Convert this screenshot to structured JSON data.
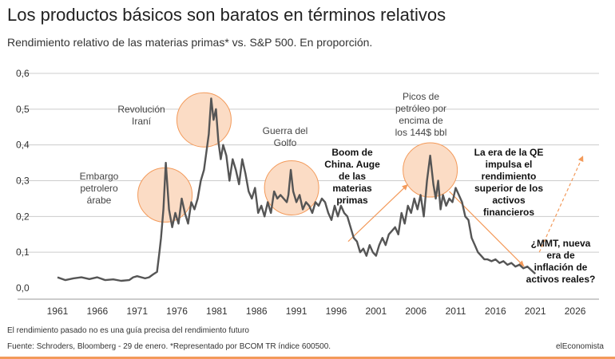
{
  "header": {
    "title": "Los productos básicos son baratos en términos relativos",
    "subtitle": "Rendimiento relativo de las materias primas* vs. S&P 500. En proporción."
  },
  "footer": {
    "note": "El rendimiento pasado no es una guía precisa del rendimiento futuro",
    "source": "Fuente: Schroders, Bloomberg - 29 de enero. *Representado por BCOM TR índice 600500.",
    "brand": "elEconomista"
  },
  "colors": {
    "line": "#555555",
    "circle_fill": "#fbdcc5",
    "circle_stroke": "#f39a5a",
    "arrow": "#f39a5a",
    "grid": "#cccccc"
  },
  "annotations": {
    "embargo": [
      "Embargo",
      "petrolero",
      "árabe"
    ],
    "revolucion": [
      "Revolución",
      "Iraní"
    ],
    "golfo": [
      "Guerra del",
      "Golfo"
    ],
    "picos": [
      "Picos de",
      "petróleo por",
      "encima de",
      "los 144$ bbl"
    ],
    "china": [
      "Boom de",
      "China. Auge",
      "de las",
      "materias",
      "primas"
    ],
    "qe": [
      "La era de la QE",
      "impulsa el",
      "rendimiento",
      "superior de los",
      "activos",
      "financieros"
    ],
    "mmt": [
      "¿MMT, nueva",
      "era de",
      "inflación de",
      "activos reales?"
    ]
  },
  "chart_data": {
    "type": "line",
    "title": "Los productos básicos son baratos en términos relativos",
    "subtitle": "Rendimiento relativo de las materias primas* vs. S&P 500. En proporción.",
    "xlim": [
      1960,
      2029
    ],
    "ylim": [
      0,
      0.6
    ],
    "x_ticks": [
      1961,
      1966,
      1971,
      1976,
      1981,
      1986,
      1991,
      1996,
      2001,
      2006,
      2011,
      2016,
      2021,
      2026
    ],
    "y_ticks": [
      0.0,
      0.1,
      0.2,
      0.3,
      0.4,
      0.5,
      0.6
    ],
    "y_tick_labels": [
      "0,0",
      "0,1",
      "0,2",
      "0,3",
      "0,4",
      "0,5",
      "0,6"
    ],
    "grid": "horizontal",
    "series": [
      {
        "x": [
          1961.0,
          1962.0,
          1963.0,
          1964.0,
          1965.0,
          1966.0,
          1967.0,
          1968.0,
          1969.0,
          1970.0,
          1970.5,
          1971.0,
          1972.0,
          1972.5,
          1973.0,
          1973.5,
          1973.8,
          1974.0,
          1974.3,
          1974.6,
          1975.0,
          1975.4,
          1975.8,
          1976.2,
          1976.6,
          1977.0,
          1977.4,
          1977.8,
          1978.2,
          1978.6,
          1979.0,
          1979.4,
          1979.7,
          1980.0,
          1980.3,
          1980.6,
          1980.9,
          1981.2,
          1981.5,
          1981.8,
          1982.2,
          1982.6,
          1983.0,
          1983.4,
          1983.8,
          1984.2,
          1984.6,
          1985.0,
          1985.4,
          1985.8,
          1986.2,
          1986.6,
          1987.0,
          1987.4,
          1987.8,
          1988.2,
          1988.6,
          1989.0,
          1989.4,
          1989.8,
          1990.0,
          1990.3,
          1990.6,
          1991.0,
          1991.4,
          1991.8,
          1992.2,
          1992.6,
          1993.0,
          1993.4,
          1993.8,
          1994.2,
          1994.6,
          1995.0,
          1995.4,
          1995.8,
          1996.2,
          1996.6,
          1997.0,
          1997.4,
          1997.8,
          1998.2,
          1998.6,
          1999.0,
          1999.4,
          1999.8,
          2000.2,
          2000.6,
          2001.0,
          2001.4,
          2001.8,
          2002.2,
          2002.6,
          2003.0,
          2003.4,
          2003.8,
          2004.2,
          2004.6,
          2005.0,
          2005.4,
          2005.8,
          2006.2,
          2006.6,
          2007.0,
          2007.4,
          2007.8,
          2008.2,
          2008.5,
          2008.8,
          2009.1,
          2009.4,
          2009.8,
          2010.2,
          2010.6,
          2011.0,
          2011.4,
          2011.8,
          2012.2,
          2012.6,
          2013.0,
          2013.4,
          2013.8,
          2014.2,
          2014.6,
          2015.0,
          2015.5,
          2016.0,
          2016.5,
          2017.0,
          2017.5,
          2018.0,
          2018.5,
          2019.0,
          2019.5,
          2020.0,
          2020.5,
          2021.0
        ],
        "y": [
          0.03,
          0.022,
          0.027,
          0.03,
          0.025,
          0.03,
          0.022,
          0.024,
          0.02,
          0.022,
          0.03,
          0.033,
          0.027,
          0.03,
          0.038,
          0.045,
          0.1,
          0.14,
          0.22,
          0.35,
          0.22,
          0.17,
          0.21,
          0.18,
          0.25,
          0.21,
          0.18,
          0.24,
          0.22,
          0.25,
          0.3,
          0.33,
          0.38,
          0.43,
          0.53,
          0.47,
          0.5,
          0.41,
          0.36,
          0.4,
          0.37,
          0.3,
          0.36,
          0.33,
          0.29,
          0.36,
          0.32,
          0.27,
          0.25,
          0.28,
          0.21,
          0.23,
          0.2,
          0.24,
          0.21,
          0.27,
          0.25,
          0.26,
          0.25,
          0.24,
          0.26,
          0.33,
          0.27,
          0.24,
          0.26,
          0.22,
          0.24,
          0.23,
          0.21,
          0.24,
          0.23,
          0.25,
          0.24,
          0.21,
          0.19,
          0.23,
          0.2,
          0.23,
          0.21,
          0.2,
          0.17,
          0.14,
          0.13,
          0.1,
          0.11,
          0.09,
          0.12,
          0.1,
          0.09,
          0.12,
          0.14,
          0.12,
          0.15,
          0.16,
          0.17,
          0.15,
          0.21,
          0.18,
          0.23,
          0.21,
          0.25,
          0.22,
          0.26,
          0.2,
          0.3,
          0.37,
          0.29,
          0.25,
          0.3,
          0.22,
          0.26,
          0.23,
          0.25,
          0.24,
          0.28,
          0.26,
          0.24,
          0.2,
          0.19,
          0.14,
          0.12,
          0.1,
          0.09,
          0.08,
          0.08,
          0.075,
          0.08,
          0.07,
          0.075,
          0.065,
          0.07,
          0.06,
          0.065,
          0.055,
          0.06,
          0.05,
          0.04
        ]
      }
    ]
  }
}
